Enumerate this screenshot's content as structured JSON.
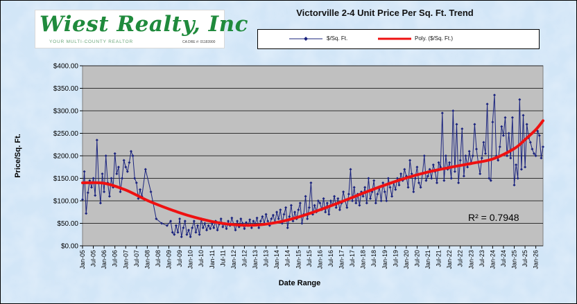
{
  "logo": {
    "name": "Wiest Realty, Inc",
    "tagline": "YOUR MULTI-COUNTY REALTOR",
    "license": "CA DRE #: 01183900"
  },
  "colors": {
    "series_line": "#1a237e",
    "trend_line": "#ee1111",
    "plot_bg": "#c0c0c0",
    "page_bg": "#cfe4f6"
  },
  "chart_data": {
    "type": "line",
    "title": "Victorville 2-4 Unit Price Per Sq. Ft. Trend",
    "xlabel": "Date Range",
    "ylabel": "Price/Sq. Ft.",
    "ylim": [
      0,
      400
    ],
    "xlim": [
      "2005-01",
      "2026-05"
    ],
    "grid": true,
    "legend_position": "top-right",
    "y_ticks": [
      "$0.00",
      "$50.00",
      "$100.00",
      "$150.00",
      "$200.00",
      "$250.00",
      "$300.00",
      "$350.00",
      "$400.00"
    ],
    "x_ticks": [
      "Jan-05",
      "Jul-05",
      "Jan-06",
      "Jul-06",
      "Jan-07",
      "Jul-07",
      "Jan-08",
      "Jul-08",
      "Jan-09",
      "Jul-09",
      "Jan-10",
      "Jul-10",
      "Jan-11",
      "Jul-11",
      "Jan-12",
      "Jul-12",
      "Jan-13",
      "Jul-13",
      "Jan-14",
      "Jul-14",
      "Jan-15",
      "Jul-15",
      "Jan-16",
      "Jul-16",
      "Jan-17",
      "Jul-17",
      "Jan-18",
      "Jul-18",
      "Jan-19",
      "Jul-19",
      "Jan-20",
      "Jul-20",
      "Jan-21",
      "Jul-21",
      "Jan-22",
      "Jul-22",
      "Jan-23",
      "Jul-23",
      "Jan-24",
      "Jul-24",
      "Jan-25",
      "Jul-25",
      "Jan-26"
    ],
    "annotation": "R² = 0.7948",
    "series": [
      {
        "name": "$/Sq. Ft.",
        "style": "line-markers",
        "points": [
          [
            "2005-01",
            103
          ],
          [
            "2005-02",
            165
          ],
          [
            "2005-03",
            72
          ],
          [
            "2005-04",
            118
          ],
          [
            "2005-05",
            145
          ],
          [
            "2005-06",
            130
          ],
          [
            "2005-07",
            150
          ],
          [
            "2005-08",
            112
          ],
          [
            "2005-09",
            235
          ],
          [
            "2005-10",
            140
          ],
          [
            "2005-11",
            95
          ],
          [
            "2005-12",
            160
          ],
          [
            "2006-01",
            120
          ],
          [
            "2006-02",
            200
          ],
          [
            "2006-03",
            140
          ],
          [
            "2006-04",
            110
          ],
          [
            "2006-05",
            150
          ],
          [
            "2006-06",
            130
          ],
          [
            "2006-07",
            205
          ],
          [
            "2006-08",
            160
          ],
          [
            "2006-09",
            175
          ],
          [
            "2006-10",
            120
          ],
          [
            "2006-11",
            150
          ],
          [
            "2006-12",
            190
          ],
          [
            "2007-01",
            175
          ],
          [
            "2007-02",
            165
          ],
          [
            "2007-03",
            185
          ],
          [
            "2007-04",
            210
          ],
          [
            "2007-05",
            200
          ],
          [
            "2007-06",
            150
          ],
          [
            "2007-07",
            140
          ],
          [
            "2007-08",
            105
          ],
          [
            "2007-09",
            125
          ],
          [
            "2007-10",
            110
          ],
          [
            "2007-12",
            170
          ],
          [
            "2008-03",
            120
          ],
          [
            "2008-06",
            60
          ],
          [
            "2008-09",
            50
          ],
          [
            "2008-12",
            45
          ],
          [
            "2009-02",
            55
          ],
          [
            "2009-03",
            30
          ],
          [
            "2009-04",
            25
          ],
          [
            "2009-05",
            45
          ],
          [
            "2009-06",
            30
          ],
          [
            "2009-07",
            60
          ],
          [
            "2009-08",
            20
          ],
          [
            "2009-09",
            40
          ],
          [
            "2009-10",
            55
          ],
          [
            "2009-11",
            25
          ],
          [
            "2009-12",
            35
          ],
          [
            "2010-01",
            20
          ],
          [
            "2010-02",
            40
          ],
          [
            "2010-03",
            55
          ],
          [
            "2010-04",
            30
          ],
          [
            "2010-05",
            45
          ],
          [
            "2010-06",
            25
          ],
          [
            "2010-07",
            60
          ],
          [
            "2010-08",
            40
          ],
          [
            "2010-09",
            50
          ],
          [
            "2010-10",
            35
          ],
          [
            "2010-11",
            45
          ],
          [
            "2010-12",
            38
          ],
          [
            "2011-01",
            50
          ],
          [
            "2011-02",
            40
          ],
          [
            "2011-03",
            55
          ],
          [
            "2011-04",
            35
          ],
          [
            "2011-05",
            48
          ],
          [
            "2011-06",
            60
          ],
          [
            "2011-07",
            42
          ],
          [
            "2011-08",
            50
          ],
          [
            "2011-09",
            38
          ],
          [
            "2011-10",
            55
          ],
          [
            "2011-11",
            45
          ],
          [
            "2011-12",
            62
          ],
          [
            "2012-01",
            48
          ],
          [
            "2012-02",
            35
          ],
          [
            "2012-03",
            55
          ],
          [
            "2012-04",
            42
          ],
          [
            "2012-05",
            60
          ],
          [
            "2012-06",
            50
          ],
          [
            "2012-07",
            38
          ],
          [
            "2012-08",
            52
          ],
          [
            "2012-09",
            45
          ],
          [
            "2012-10",
            58
          ],
          [
            "2012-11",
            40
          ],
          [
            "2012-12",
            55
          ],
          [
            "2013-01",
            48
          ],
          [
            "2013-02",
            62
          ],
          [
            "2013-03",
            40
          ],
          [
            "2013-04",
            55
          ],
          [
            "2013-05",
            65
          ],
          [
            "2013-06",
            50
          ],
          [
            "2013-07",
            70
          ],
          [
            "2013-08",
            55
          ],
          [
            "2013-09",
            45
          ],
          [
            "2013-10",
            60
          ],
          [
            "2013-11",
            68
          ],
          [
            "2013-12",
            52
          ],
          [
            "2014-01",
            75
          ],
          [
            "2014-02",
            60
          ],
          [
            "2014-03",
            80
          ],
          [
            "2014-04",
            50
          ],
          [
            "2014-05",
            70
          ],
          [
            "2014-06",
            85
          ],
          [
            "2014-07",
            40
          ],
          [
            "2014-08",
            65
          ],
          [
            "2014-09",
            90
          ],
          [
            "2014-10",
            55
          ],
          [
            "2014-11",
            75
          ],
          [
            "2014-12",
            60
          ],
          [
            "2015-01",
            80
          ],
          [
            "2015-02",
            95
          ],
          [
            "2015-03",
            50
          ],
          [
            "2015-04",
            70
          ],
          [
            "2015-05",
            110
          ],
          [
            "2015-06",
            60
          ],
          [
            "2015-07",
            85
          ],
          [
            "2015-08",
            140
          ],
          [
            "2015-09",
            70
          ],
          [
            "2015-10",
            90
          ],
          [
            "2015-11",
            75
          ],
          [
            "2015-12",
            100
          ],
          [
            "2016-01",
            95
          ],
          [
            "2016-02",
            80
          ],
          [
            "2016-03",
            105
          ],
          [
            "2016-04",
            75
          ],
          [
            "2016-05",
            95
          ],
          [
            "2016-06",
            70
          ],
          [
            "2016-07",
            100
          ],
          [
            "2016-08",
            90
          ],
          [
            "2016-09",
            110
          ],
          [
            "2016-10",
            85
          ],
          [
            "2016-11",
            105
          ],
          [
            "2016-12",
            80
          ],
          [
            "2017-01",
            95
          ],
          [
            "2017-02",
            120
          ],
          [
            "2017-03",
            100
          ],
          [
            "2017-04",
            85
          ],
          [
            "2017-05",
            115
          ],
          [
            "2017-06",
            170
          ],
          [
            "2017-07",
            100
          ],
          [
            "2017-08",
            130
          ],
          [
            "2017-09",
            95
          ],
          [
            "2017-10",
            115
          ],
          [
            "2017-11",
            90
          ],
          [
            "2017-12",
            120
          ],
          [
            "2018-01",
            110
          ],
          [
            "2018-02",
            130
          ],
          [
            "2018-03",
            95
          ],
          [
            "2018-04",
            150
          ],
          [
            "2018-05",
            105
          ],
          [
            "2018-06",
            120
          ],
          [
            "2018-07",
            145
          ],
          [
            "2018-08",
            95
          ],
          [
            "2018-09",
            115
          ],
          [
            "2018-10",
            130
          ],
          [
            "2018-11",
            100
          ],
          [
            "2018-12",
            140
          ],
          [
            "2019-01",
            120
          ],
          [
            "2019-02",
            100
          ],
          [
            "2019-03",
            150
          ],
          [
            "2019-04",
            130
          ],
          [
            "2019-05",
            110
          ],
          [
            "2019-06",
            140
          ],
          [
            "2019-07",
            125
          ],
          [
            "2019-08",
            150
          ],
          [
            "2019-09",
            135
          ],
          [
            "2019-10",
            160
          ],
          [
            "2019-11",
            145
          ],
          [
            "2019-12",
            170
          ],
          [
            "2020-01",
            155
          ],
          [
            "2020-02",
            130
          ],
          [
            "2020-03",
            190
          ],
          [
            "2020-04",
            160
          ],
          [
            "2020-05",
            120
          ],
          [
            "2020-06",
            150
          ],
          [
            "2020-07",
            175
          ],
          [
            "2020-08",
            140
          ],
          [
            "2020-09",
            130
          ],
          [
            "2020-10",
            160
          ],
          [
            "2020-11",
            200
          ],
          [
            "2020-12",
            145
          ],
          [
            "2021-01",
            155
          ],
          [
            "2021-02",
            170
          ],
          [
            "2021-03",
            150
          ],
          [
            "2021-04",
            180
          ],
          [
            "2021-05",
            165
          ],
          [
            "2021-06",
            140
          ],
          [
            "2021-07",
            185
          ],
          [
            "2021-08",
            175
          ],
          [
            "2021-09",
            295
          ],
          [
            "2021-10",
            145
          ],
          [
            "2021-11",
            200
          ],
          [
            "2021-12",
            170
          ],
          [
            "2022-01",
            185
          ],
          [
            "2022-02",
            150
          ],
          [
            "2022-03",
            300
          ],
          [
            "2022-04",
            165
          ],
          [
            "2022-05",
            270
          ],
          [
            "2022-06",
            140
          ],
          [
            "2022-07",
            190
          ],
          [
            "2022-08",
            260
          ],
          [
            "2022-09",
            155
          ],
          [
            "2022-10",
            200
          ],
          [
            "2022-11",
            175
          ],
          [
            "2022-12",
            210
          ],
          [
            "2023-01",
            185
          ],
          [
            "2023-02",
            200
          ],
          [
            "2023-03",
            270
          ],
          [
            "2023-04",
            215
          ],
          [
            "2023-05",
            185
          ],
          [
            "2023-06",
            160
          ],
          [
            "2023-07",
            195
          ],
          [
            "2023-08",
            230
          ],
          [
            "2023-09",
            205
          ],
          [
            "2023-10",
            315
          ],
          [
            "2023-11",
            150
          ],
          [
            "2023-12",
            145
          ],
          [
            "2024-01",
            275
          ],
          [
            "2024-02",
            335
          ],
          [
            "2024-03",
            200
          ],
          [
            "2024-04",
            190
          ],
          [
            "2024-05",
            220
          ],
          [
            "2024-06",
            265
          ],
          [
            "2024-07",
            245
          ],
          [
            "2024-08",
            285
          ],
          [
            "2024-09",
            200
          ],
          [
            "2024-10",
            250
          ],
          [
            "2024-11",
            195
          ],
          [
            "2024-12",
            285
          ],
          [
            "2025-01",
            135
          ],
          [
            "2025-02",
            180
          ],
          [
            "2025-03",
            150
          ],
          [
            "2025-04",
            325
          ],
          [
            "2025-05",
            170
          ],
          [
            "2025-06",
            290
          ],
          [
            "2025-07",
            175
          ],
          [
            "2025-08",
            270
          ],
          [
            "2025-09",
            240
          ],
          [
            "2025-10",
            230
          ],
          [
            "2025-11",
            215
          ],
          [
            "2025-12",
            205
          ],
          [
            "2026-01",
            200
          ],
          [
            "2026-02",
            255
          ],
          [
            "2026-03",
            245
          ],
          [
            "2026-04",
            195
          ],
          [
            "2026-05",
            220
          ]
        ]
      },
      {
        "name": "Poly. ($/Sq. Ft.)",
        "style": "trendline",
        "points": [
          [
            "2005-01",
            140
          ],
          [
            "2006-01",
            139
          ],
          [
            "2007-01",
            124
          ],
          [
            "2008-01",
            101
          ],
          [
            "2009-01",
            82
          ],
          [
            "2010-01",
            66
          ],
          [
            "2011-01",
            54
          ],
          [
            "2012-01",
            47
          ],
          [
            "2013-01",
            46
          ],
          [
            "2014-01",
            52
          ],
          [
            "2015-01",
            64
          ],
          [
            "2016-01",
            80
          ],
          [
            "2017-01",
            98
          ],
          [
            "2018-01",
            117
          ],
          [
            "2019-01",
            135
          ],
          [
            "2020-01",
            151
          ],
          [
            "2021-01",
            164
          ],
          [
            "2022-01",
            174
          ],
          [
            "2023-01",
            183
          ],
          [
            "2024-01",
            193
          ],
          [
            "2025-01",
            216
          ],
          [
            "2025-07",
            236
          ],
          [
            "2026-01",
            258
          ],
          [
            "2026-05",
            278
          ]
        ]
      }
    ]
  }
}
